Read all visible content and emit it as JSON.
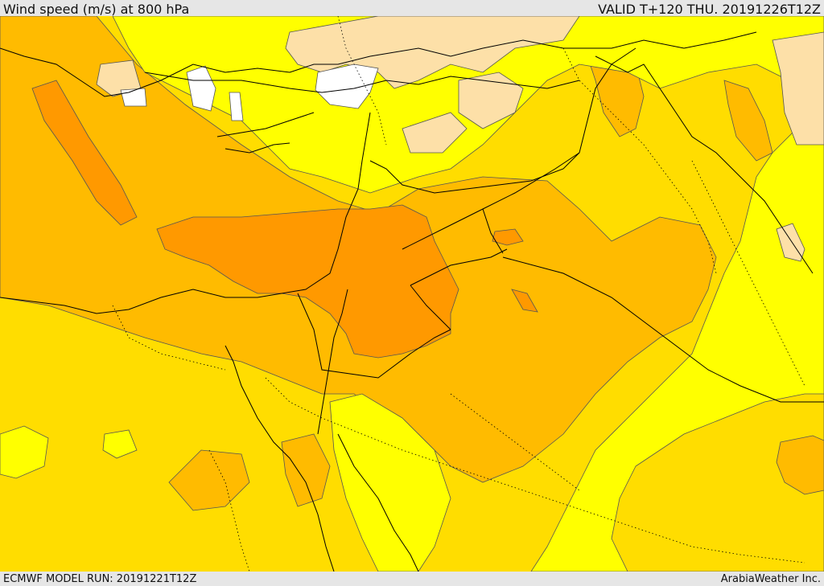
{
  "header": {
    "title": "Wind speed (m/s) at 800 hPa",
    "valid": "VALID T+120 THU. 20191226T12Z"
  },
  "footer": {
    "model_run": "ECMWF MODEL RUN: 20191221T12Z",
    "credit": "ArabiaWeather Inc."
  },
  "map": {
    "field": "wind speed",
    "level": "800 hPa",
    "palette": {
      "calm": "#ffffff",
      "light": "#fde0a8",
      "low": "#ffff00",
      "moderate": "#ffdd00",
      "fresh": "#ffbb00",
      "strong": "#ff9900",
      "boundary": "#000000",
      "contour": "#333333"
    }
  }
}
